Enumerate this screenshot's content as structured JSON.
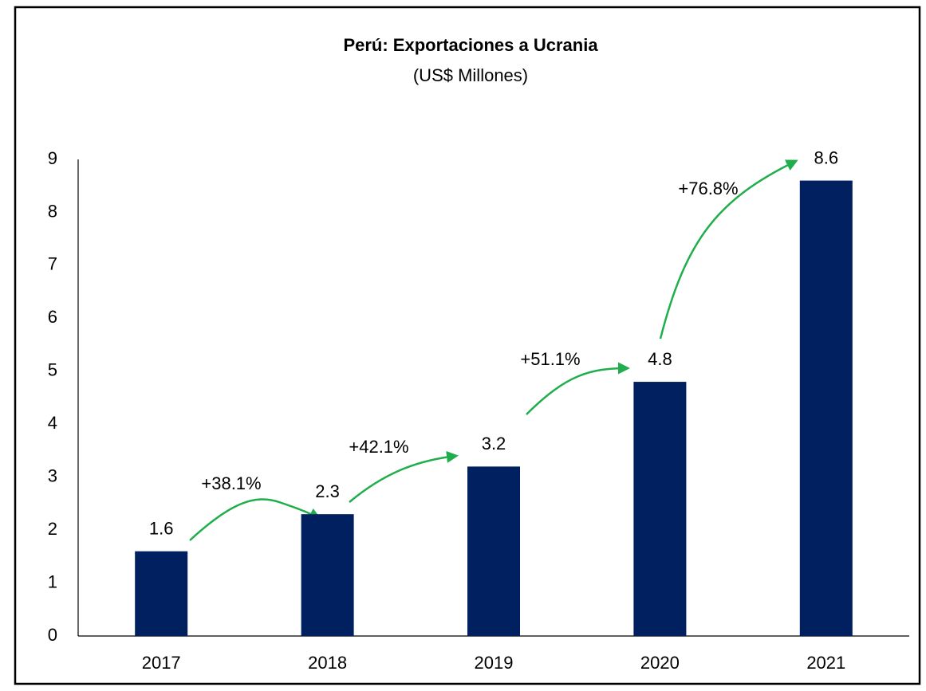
{
  "chart_data": {
    "type": "bar",
    "title": "Perú: Exportaciones a Ucrania",
    "subtitle": "(US$ Millones)",
    "categories": [
      "2017",
      "2018",
      "2019",
      "2020",
      "2021"
    ],
    "values": [
      1.6,
      2.3,
      3.2,
      4.8,
      8.6
    ],
    "color": "#002060",
    "ylim": [
      0,
      9
    ],
    "yticks": [
      0,
      1,
      2,
      3,
      4,
      5,
      6,
      7,
      8,
      9
    ],
    "grid": false,
    "annotations": [
      "+38.1%",
      "+42.1%",
      "+51.1%",
      "+76.8%"
    ]
  }
}
